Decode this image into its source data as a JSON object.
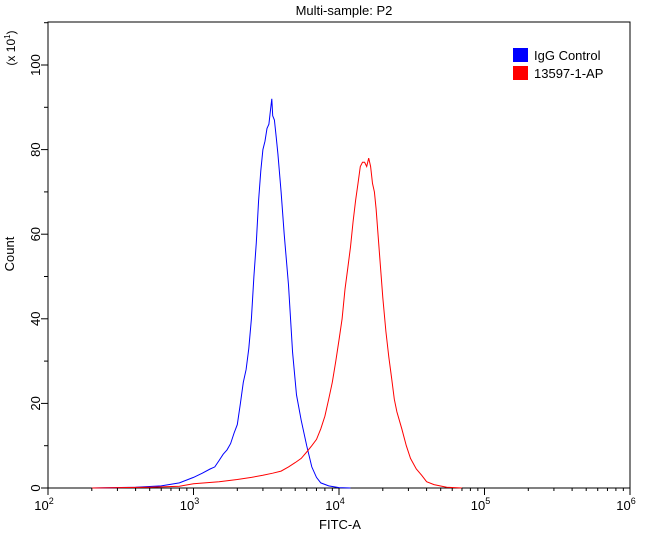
{
  "chart_data": {
    "type": "line",
    "title": "Multi-sample: P2",
    "xlabel": "FITC-A",
    "ylabel": "Count",
    "y_multiplier": {
      "text": "(x 10",
      "exponent": "1",
      "close": ")"
    },
    "x_scale": "log",
    "xlim": [
      100,
      1000000
    ],
    "ylim": [
      0,
      110
    ],
    "x_ticks": [
      {
        "value": 100,
        "base": "10",
        "exp": "2"
      },
      {
        "value": 1000,
        "base": "10",
        "exp": "3"
      },
      {
        "value": 10000,
        "base": "10",
        "exp": "4"
      },
      {
        "value": 100000,
        "base": "10",
        "exp": "5"
      },
      {
        "value": 1000000,
        "base": "10",
        "exp": "6"
      }
    ],
    "y_ticks": [
      0,
      20,
      40,
      60,
      80,
      100
    ],
    "grid": false,
    "legend_position": "top-right",
    "series": [
      {
        "name": "IgG Control",
        "color": "#0000ff",
        "points": [
          [
            200,
            0
          ],
          [
            400,
            0.2
          ],
          [
            600,
            0.5
          ],
          [
            800,
            1.2
          ],
          [
            1000,
            2.5
          ],
          [
            1150,
            3.5
          ],
          [
            1300,
            4.5
          ],
          [
            1400,
            5
          ],
          [
            1500,
            6.5
          ],
          [
            1600,
            8
          ],
          [
            1700,
            9
          ],
          [
            1800,
            10.5
          ],
          [
            1900,
            13
          ],
          [
            2000,
            15
          ],
          [
            2100,
            20
          ],
          [
            2200,
            25
          ],
          [
            2300,
            28
          ],
          [
            2400,
            33
          ],
          [
            2500,
            40
          ],
          [
            2600,
            50
          ],
          [
            2700,
            58
          ],
          [
            2800,
            68
          ],
          [
            2900,
            75
          ],
          [
            3000,
            80
          ],
          [
            3100,
            82
          ],
          [
            3200,
            85
          ],
          [
            3300,
            86
          ],
          [
            3400,
            90
          ],
          [
            3450,
            92
          ],
          [
            3500,
            88
          ],
          [
            3600,
            87
          ],
          [
            3700,
            83
          ],
          [
            3800,
            79
          ],
          [
            4000,
            70
          ],
          [
            4200,
            60
          ],
          [
            4500,
            48
          ],
          [
            4800,
            32
          ],
          [
            5100,
            22
          ],
          [
            5500,
            16
          ],
          [
            6000,
            10
          ],
          [
            6500,
            5
          ],
          [
            7000,
            2.5
          ],
          [
            7500,
            1.2
          ],
          [
            8500,
            0.5
          ],
          [
            10000,
            0.1
          ],
          [
            12000,
            0
          ]
        ]
      },
      {
        "name": "13597-1-AP",
        "color": "#ff0000",
        "points": [
          [
            200,
            0
          ],
          [
            500,
            0.2
          ],
          [
            800,
            0.4
          ],
          [
            1000,
            1
          ],
          [
            1500,
            1.5
          ],
          [
            2000,
            2
          ],
          [
            2500,
            2.5
          ],
          [
            3000,
            3
          ],
          [
            3500,
            3.5
          ],
          [
            4000,
            4
          ],
          [
            4500,
            5
          ],
          [
            5000,
            6
          ],
          [
            5500,
            7
          ],
          [
            6000,
            8.5
          ],
          [
            6500,
            10
          ],
          [
            7000,
            11.5
          ],
          [
            7500,
            14
          ],
          [
            8000,
            17
          ],
          [
            8500,
            21
          ],
          [
            9000,
            25
          ],
          [
            9500,
            30
          ],
          [
            10000,
            35
          ],
          [
            10500,
            40
          ],
          [
            11000,
            47
          ],
          [
            11500,
            52
          ],
          [
            12000,
            57
          ],
          [
            12500,
            63
          ],
          [
            13000,
            68
          ],
          [
            13500,
            72
          ],
          [
            14000,
            76
          ],
          [
            14500,
            77
          ],
          [
            15000,
            77
          ],
          [
            15500,
            76
          ],
          [
            16000,
            78
          ],
          [
            16500,
            76
          ],
          [
            17000,
            72
          ],
          [
            17500,
            70
          ],
          [
            18000,
            66
          ],
          [
            19000,
            55
          ],
          [
            20000,
            45
          ],
          [
            21000,
            37
          ],
          [
            22000,
            31
          ],
          [
            23000,
            26
          ],
          [
            24000,
            21
          ],
          [
            25000,
            18
          ],
          [
            27000,
            14
          ],
          [
            29000,
            10
          ],
          [
            31000,
            7
          ],
          [
            34000,
            4.5
          ],
          [
            37000,
            3
          ],
          [
            40000,
            1.5
          ],
          [
            45000,
            0.8
          ],
          [
            55000,
            0.2
          ],
          [
            70000,
            0
          ]
        ]
      }
    ]
  }
}
